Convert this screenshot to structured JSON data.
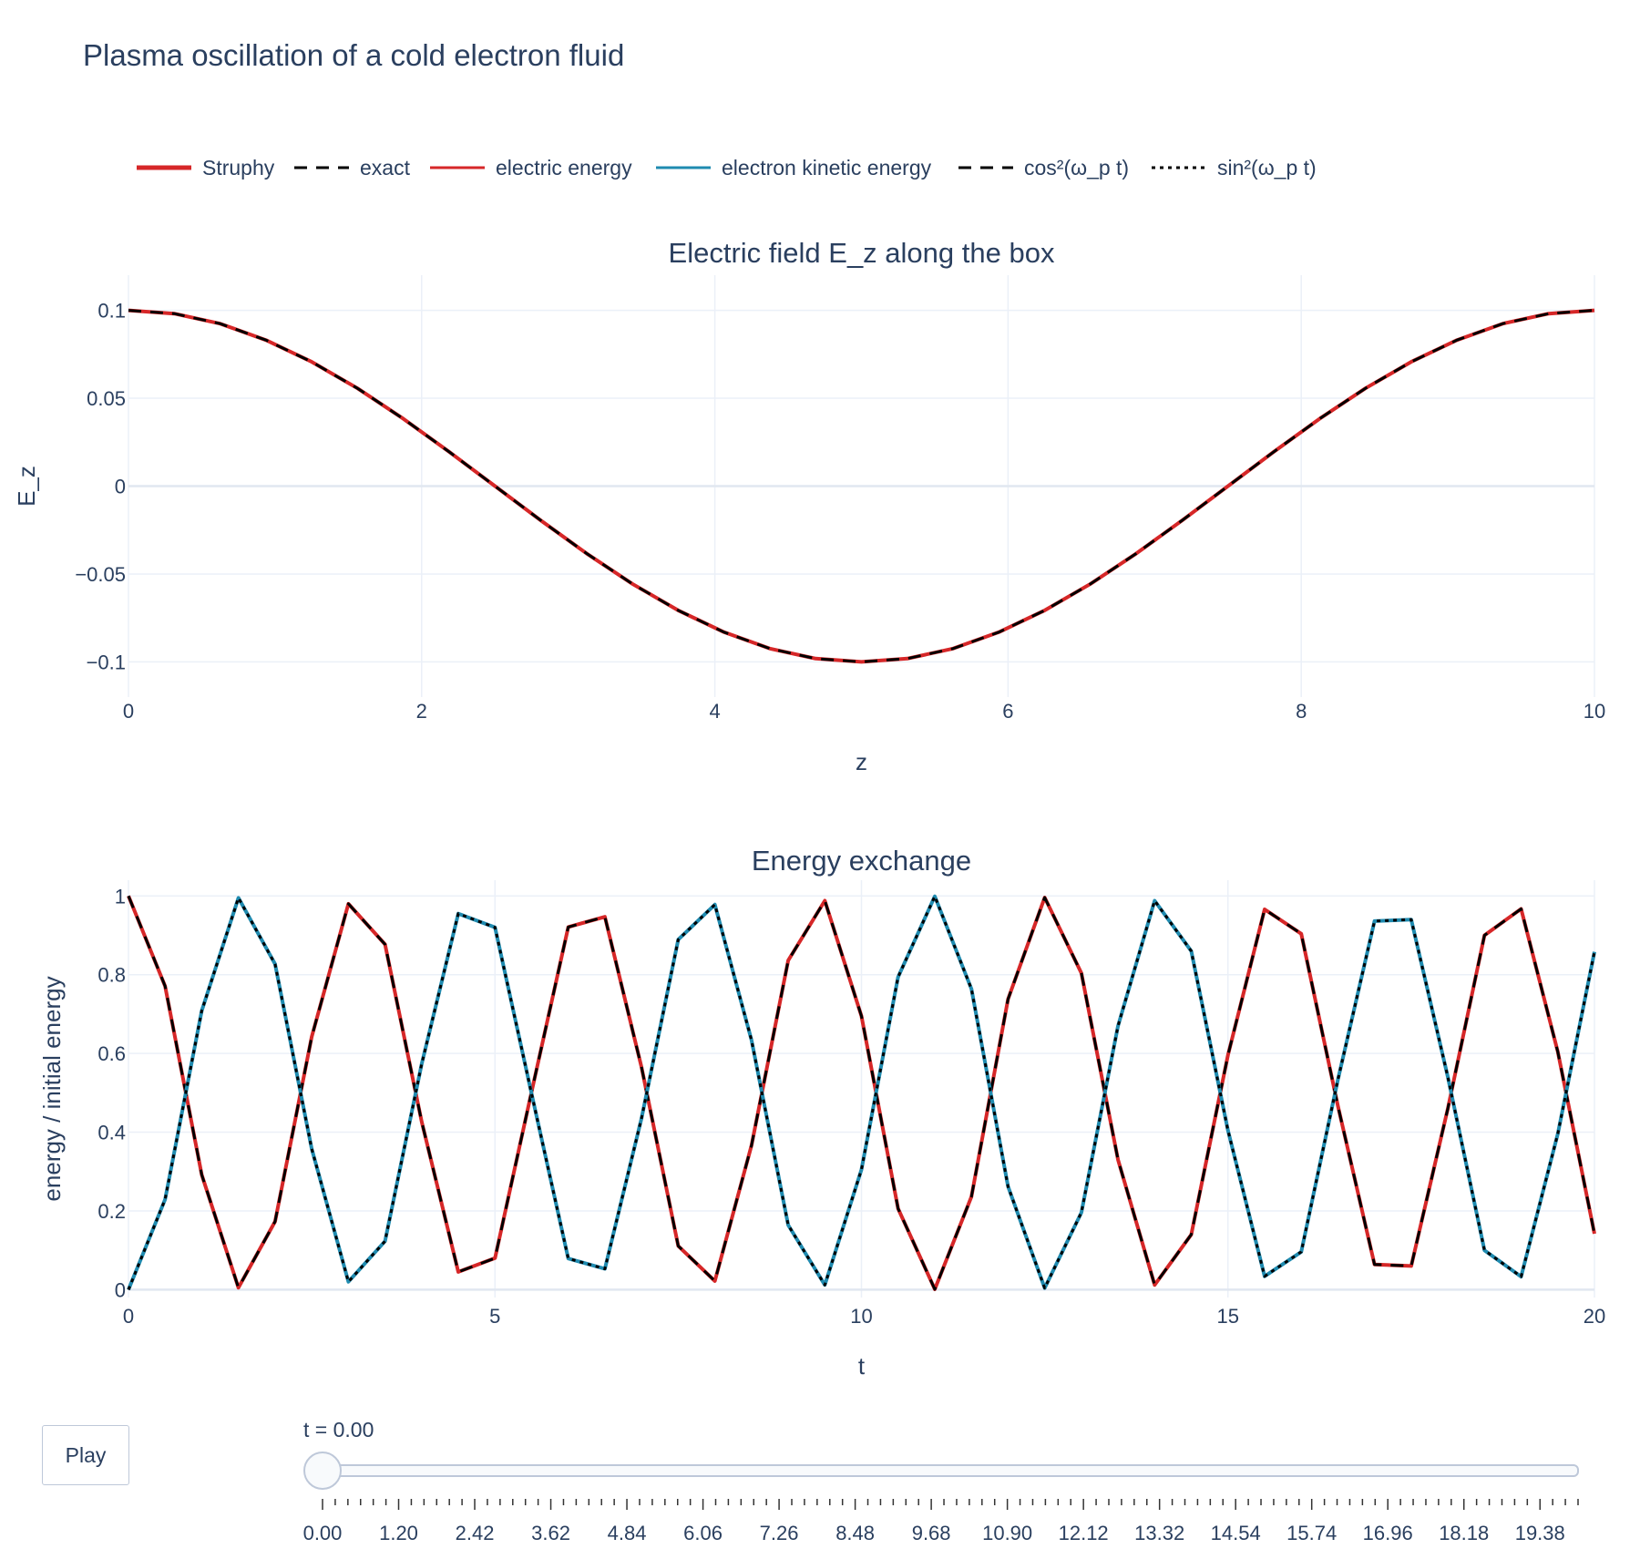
{
  "title": "Plasma oscillation of a cold electron fluid",
  "legend": [
    {
      "name": "Struphy",
      "color": "#d62728",
      "dash": "solid",
      "width": 5
    },
    {
      "name": "exact",
      "color": "#000000",
      "dash": "dash",
      "width": 3
    },
    {
      "name": "electric energy",
      "color": "#d62728",
      "dash": "solid",
      "width": 3
    },
    {
      "name": "electron kinetic energy",
      "color": "#1f8bb0",
      "dash": "solid",
      "width": 3
    },
    {
      "name": "cos²(ω_p t)",
      "color": "#000000",
      "dash": "dash",
      "width": 3
    },
    {
      "name": "sin²(ω_p t)",
      "color": "#000000",
      "dash": "dot",
      "width": 3
    }
  ],
  "chart_data": [
    {
      "type": "line",
      "title": "Electric field E_z along the box",
      "xlabel": "z",
      "ylabel": "E_z",
      "xlim": [
        0,
        10
      ],
      "ylim": [
        -0.12,
        0.12
      ],
      "xticks": [
        0,
        2,
        4,
        6,
        8,
        10
      ],
      "xtick_labels": [
        "0",
        "2",
        "4",
        "6",
        "8",
        "10"
      ],
      "yticks": [
        -0.1,
        -0.05,
        0,
        0.05,
        0.1
      ],
      "ytick_labels": [
        "−0.1",
        "−0.05",
        "0",
        "0.05",
        "0.1"
      ],
      "grid": true,
      "x": [
        0,
        0.3125,
        0.625,
        0.9375,
        1.25,
        1.5625,
        1.875,
        2.1875,
        2.5,
        2.8125,
        3.125,
        3.4375,
        3.75,
        4.0625,
        4.375,
        4.6875,
        5,
        5.3125,
        5.625,
        5.9375,
        6.25,
        6.5625,
        6.875,
        7.1875,
        7.5,
        7.8125,
        8.125,
        8.4375,
        8.75,
        9.0625,
        9.375,
        9.6875,
        10
      ],
      "series": [
        {
          "name": "Struphy",
          "color": "#d62728",
          "dash": "solid",
          "values": [
            0.1,
            0.0981,
            0.0924,
            0.0831,
            0.0707,
            0.0556,
            0.0383,
            0.0195,
            0,
            -0.0195,
            -0.0383,
            -0.0556,
            -0.0707,
            -0.0831,
            -0.0924,
            -0.0981,
            -0.1,
            -0.0981,
            -0.0924,
            -0.0831,
            -0.0707,
            -0.0556,
            -0.0383,
            -0.0195,
            0,
            0.0195,
            0.0383,
            0.0556,
            0.0707,
            0.0831,
            0.0924,
            0.0981,
            0.1
          ]
        },
        {
          "name": "exact",
          "color": "#000000",
          "dash": "dash",
          "values": [
            0.1,
            0.0981,
            0.0924,
            0.0831,
            0.0707,
            0.0556,
            0.0383,
            0.0195,
            0,
            -0.0195,
            -0.0383,
            -0.0556,
            -0.0707,
            -0.0831,
            -0.0924,
            -0.0981,
            -0.1,
            -0.0981,
            -0.0924,
            -0.0831,
            -0.0707,
            -0.0556,
            -0.0383,
            -0.0195,
            0,
            0.0195,
            0.0383,
            0.0556,
            0.0707,
            0.0831,
            0.0924,
            0.0981,
            0.1
          ]
        }
      ]
    },
    {
      "type": "line",
      "title": "Energy exchange",
      "xlabel": "t",
      "ylabel": "energy / initial energy",
      "xlim": [
        0,
        20
      ],
      "ylim": [
        -0.02,
        1.04
      ],
      "xticks": [
        0,
        5,
        10,
        15,
        20
      ],
      "xtick_labels": [
        "0",
        "5",
        "10",
        "15",
        "20"
      ],
      "yticks": [
        0,
        0.2,
        0.4,
        0.6,
        0.8,
        1
      ],
      "ytick_labels": [
        "0",
        "0.2",
        "0.4",
        "0.6",
        "0.8",
        "1"
      ],
      "grid": true,
      "x": [
        0,
        0.5,
        1,
        1.5,
        2,
        2.5,
        3,
        3.5,
        4,
        4.5,
        5,
        5.5,
        6,
        6.5,
        7,
        7.5,
        8,
        8.5,
        9,
        9.5,
        10,
        10.5,
        11,
        11.5,
        12,
        12.5,
        13,
        13.5,
        14,
        14.5,
        15,
        15.5,
        16,
        16.5,
        17,
        17.5,
        18,
        18.5,
        19,
        19.5,
        20
      ],
      "series": [
        {
          "name": "electric energy",
          "color": "#d62728",
          "dash": "solid",
          "values": [
            1,
            0.771,
            0.292,
            0.005,
            0.173,
            0.642,
            0.98,
            0.877,
            0.427,
            0.045,
            0.08,
            0.503,
            0.921,
            0.947,
            0.565,
            0.111,
            0.022,
            0.366,
            0.836,
            0.988,
            0.695,
            0.206,
            0.001,
            0.236,
            0.738,
            0.996,
            0.804,
            0.33,
            0.012,
            0.14,
            0.596,
            0.966,
            0.904,
            0.467,
            0.064,
            0.06,
            0.46,
            0.9,
            0.967,
            0.604,
            0.142
          ]
        },
        {
          "name": "cos²(ω_p t)",
          "color": "#000000",
          "dash": "dash",
          "values": [
            1,
            0.771,
            0.292,
            0.005,
            0.173,
            0.642,
            0.98,
            0.877,
            0.427,
            0.045,
            0.08,
            0.503,
            0.921,
            0.947,
            0.565,
            0.111,
            0.022,
            0.366,
            0.836,
            0.988,
            0.695,
            0.206,
            0.001,
            0.236,
            0.738,
            0.996,
            0.804,
            0.33,
            0.012,
            0.14,
            0.596,
            0.966,
            0.904,
            0.467,
            0.064,
            0.06,
            0.46,
            0.9,
            0.967,
            0.604,
            0.142
          ]
        },
        {
          "name": "electron kinetic energy",
          "color": "#1f8bb0",
          "dash": "solid",
          "values": [
            0,
            0.229,
            0.708,
            0.995,
            0.827,
            0.358,
            0.02,
            0.123,
            0.573,
            0.955,
            0.92,
            0.497,
            0.079,
            0.053,
            0.435,
            0.889,
            0.978,
            0.634,
            0.164,
            0.012,
            0.305,
            0.794,
            0.999,
            0.764,
            0.262,
            0.004,
            0.196,
            0.67,
            0.988,
            0.86,
            0.404,
            0.034,
            0.096,
            0.533,
            0.936,
            0.94,
            0.54,
            0.1,
            0.033,
            0.396,
            0.858
          ]
        },
        {
          "name": "sin²(ω_p t)",
          "color": "#000000",
          "dash": "dot",
          "values": [
            0,
            0.229,
            0.708,
            0.995,
            0.827,
            0.358,
            0.02,
            0.123,
            0.573,
            0.955,
            0.92,
            0.497,
            0.079,
            0.053,
            0.435,
            0.889,
            0.978,
            0.634,
            0.164,
            0.012,
            0.305,
            0.794,
            0.999,
            0.764,
            0.262,
            0.004,
            0.196,
            0.67,
            0.988,
            0.86,
            0.404,
            0.034,
            0.096,
            0.533,
            0.936,
            0.94,
            0.54,
            0.1,
            0.033,
            0.396,
            0.858
          ]
        }
      ]
    }
  ],
  "controls": {
    "play_label": "Play",
    "slider_current": "t = 0.00",
    "slider_value": 0,
    "slider_range": [
      0,
      20
    ],
    "slider_step_count": 100,
    "slider_labels": [
      "0.00",
      "1.20",
      "2.42",
      "3.62",
      "4.84",
      "6.06",
      "7.26",
      "8.48",
      "9.68",
      "10.90",
      "12.12",
      "13.32",
      "14.54",
      "15.74",
      "16.96",
      "18.18",
      "19.38"
    ]
  }
}
